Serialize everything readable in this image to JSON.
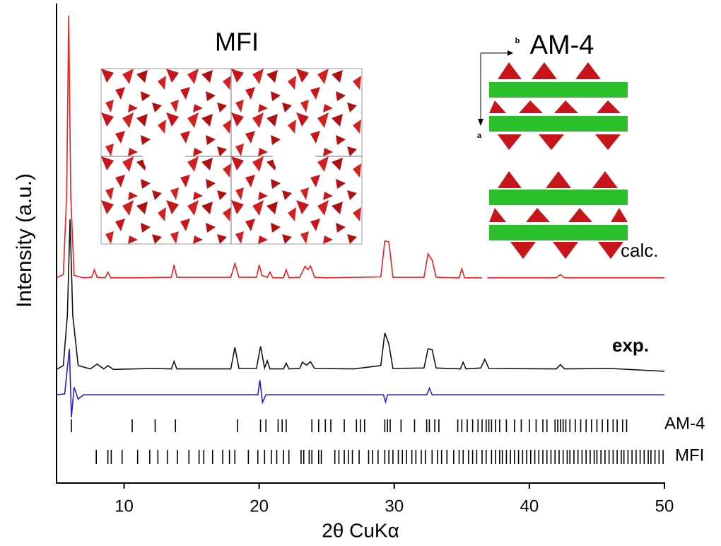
{
  "chart_data": {
    "type": "line",
    "y_label": "Intensity (a.u.)",
    "x_label": "2θ CuKα",
    "xlim": [
      5,
      50
    ],
    "xticks": [
      10,
      20,
      30,
      40,
      50
    ],
    "ylim": [
      0,
      100
    ],
    "annotations": [
      "MFI",
      "AM-4",
      "b",
      "a"
    ],
    "series": [
      {
        "name": "calc.",
        "color": "#e8211c",
        "x": [
          5,
          5.5,
          5.75,
          5.9,
          6.05,
          6.3,
          7.0,
          7.6,
          7.8,
          8.0,
          8.6,
          8.8,
          9.0,
          11.0,
          13.5,
          13.7,
          13.9,
          17.9,
          18.2,
          18.5,
          19.8,
          20.0,
          20.2,
          20.6,
          20.8,
          21.0,
          21.8,
          22.0,
          22.2,
          23.0,
          23.4,
          23.6,
          23.8,
          24.1,
          25.0,
          29.0,
          29.3,
          29.6,
          29.9,
          32.2,
          32.5,
          32.8,
          33.1,
          34.8,
          35.0,
          35.2,
          36.5,
          36.6,
          36.9,
          42.0,
          42.3,
          42.6,
          50
        ],
        "values": [
          42.8,
          43.5,
          60,
          97.5,
          60,
          43.3,
          42.8,
          42.9,
          44.5,
          42.9,
          42.8,
          44,
          42.8,
          42.8,
          42.9,
          45.5,
          42.9,
          42.9,
          45.8,
          42.9,
          42.9,
          45.5,
          43.3,
          42.9,
          44,
          42.8,
          42.8,
          44.5,
          42.8,
          42.9,
          45.2,
          44.5,
          45.3,
          42.9,
          42.8,
          43,
          50.5,
          50.3,
          42.9,
          42.9,
          47.8,
          46.5,
          42.9,
          42.8,
          44.7,
          42.8,
          42.8,
          null,
          42.8,
          42.8,
          43.5,
          42.8,
          42.8
        ]
      },
      {
        "name": "exp.",
        "color": "#111111",
        "x": [
          5,
          5.5,
          5.8,
          6.0,
          6.2,
          6.6,
          7.5,
          8.0,
          8.5,
          8.8,
          9.2,
          12.0,
          13.5,
          13.7,
          13.9,
          17.9,
          18.2,
          18.5,
          19.8,
          20.1,
          20.4,
          20.6,
          20.8,
          21.8,
          22.0,
          22.2,
          23.0,
          23.2,
          23.5,
          23.8,
          24.1,
          27.0,
          29.0,
          29.3,
          29.6,
          29.9,
          32.2,
          32.5,
          32.8,
          33.1,
          34.9,
          35.1,
          35.3,
          36.4,
          36.7,
          37.0,
          42.0,
          42.3,
          42.6,
          46.0,
          50
        ],
        "values": [
          23.7,
          24.5,
          35,
          55,
          35,
          24.5,
          23.8,
          24.8,
          23.8,
          24.5,
          23.7,
          23.9,
          23.8,
          25.4,
          23.8,
          23.8,
          28.3,
          23.9,
          23.9,
          28.5,
          24,
          25.5,
          23.8,
          23.8,
          25,
          23.8,
          23.9,
          25.2,
          24.6,
          25.3,
          23.9,
          23.8,
          24.5,
          31.3,
          29,
          23.9,
          24,
          28,
          27.8,
          24,
          23.8,
          25.2,
          23.8,
          24,
          25.8,
          23.9,
          23.8,
          24.7,
          23.8,
          23.9,
          23.3
        ]
      },
      {
        "color": "#2222cc",
        "x": [
          5,
          5.6,
          5.8,
          5.95,
          6.1,
          6.3,
          6.6,
          7.0,
          19.9,
          20.05,
          20.25,
          20.5,
          29.2,
          29.35,
          29.5,
          32.4,
          32.6,
          32.8,
          50
        ],
        "values": [
          18.4,
          18.6,
          24,
          28,
          13.7,
          20,
          17.5,
          18.4,
          18.4,
          21.5,
          16.8,
          18.4,
          18.4,
          16.9,
          18.4,
          18.4,
          19.8,
          18.4,
          18.4
        ]
      }
    ],
    "reflections": [
      {
        "name": "AM-4",
        "x": [
          6.1,
          10.6,
          12.3,
          13.8,
          18.4,
          20.1,
          20.5,
          21.4,
          21.7,
          22.0,
          23.9,
          24.4,
          24.9,
          25.3,
          26.3,
          27.2,
          27.5,
          27.8,
          29.3,
          29.5,
          29.7,
          30.5,
          31.5,
          32.4,
          32.6,
          33.0,
          33.3,
          34.7,
          35.0,
          35.4,
          35.8,
          36.2,
          36.5,
          36.8,
          37.0,
          37.2,
          37.5,
          37.8,
          38.3,
          38.9,
          39.4,
          40.0,
          40.5,
          41.0,
          41.3,
          41.9,
          42.1,
          42.3,
          42.5,
          42.7,
          43.0,
          43.4,
          43.8,
          44.2,
          44.6,
          45.0,
          45.4,
          45.8,
          46.2,
          46.5,
          46.9,
          47.2
        ]
      },
      {
        "name": "MFI",
        "x": [
          7.94,
          8.8,
          9.05,
          9.85,
          11.0,
          11.9,
          12.5,
          13.2,
          13.95,
          14.8,
          15.55,
          15.9,
          16.55,
          17.3,
          17.8,
          18.2,
          19.2,
          19.9,
          20.4,
          20.9,
          21.3,
          21.8,
          22.2,
          23.1,
          23.3,
          23.7,
          23.9,
          24.4,
          24.6,
          25.6,
          25.9,
          26.3,
          26.6,
          26.9,
          27.4,
          28.1,
          28.4,
          28.8,
          29.3,
          29.6,
          29.9,
          30.3,
          30.6,
          30.9,
          31.3,
          31.6,
          32.0,
          32.3,
          32.8,
          33.2,
          33.5,
          33.9,
          34.4,
          34.8,
          35.1,
          35.5,
          35.8,
          36.1,
          36.5,
          36.8,
          37.2,
          37.5,
          37.8,
          38.0,
          38.3,
          38.6,
          38.9,
          39.2,
          39.5,
          39.8,
          40.1,
          40.4,
          40.7,
          41.0,
          41.3,
          41.6,
          41.9,
          42.2,
          42.5,
          42.8,
          43.0,
          43.3,
          43.6,
          43.9,
          44.2,
          44.5,
          44.8,
          45.0,
          45.3,
          45.6,
          45.9,
          46.2,
          46.5,
          46.8,
          47.0,
          47.3,
          47.6,
          47.9,
          48.2,
          48.5,
          48.8,
          49.0,
          49.3,
          49.6,
          49.9
        ]
      }
    ]
  }
}
